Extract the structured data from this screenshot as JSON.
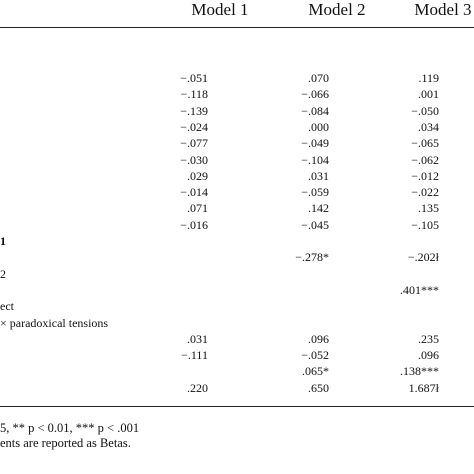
{
  "table": {
    "headers": [
      "Model 1",
      "Model 2",
      "Model 3"
    ],
    "rows": [
      {
        "label": "",
        "m1": "−.051",
        "m2": ".070",
        "m3": ".119"
      },
      {
        "label": "",
        "m1": "−.118",
        "m2": "−.066",
        "m3": ".001"
      },
      {
        "label": "",
        "m1": "−.139",
        "m2": "−.084",
        "m3": "−.050"
      },
      {
        "label": "",
        "m1": "−.024",
        "m2": ".000",
        "m3": ".034"
      },
      {
        "label": "",
        "m1": "−.077",
        "m2": "−.049",
        "m3": "−.065"
      },
      {
        "label": "",
        "m1": "−.030",
        "m2": "−.104",
        "m3": "−.062"
      },
      {
        "label": "",
        "m1": ".029",
        "m2": ".031",
        "m3": "−.012"
      },
      {
        "label": "",
        "m1": "−.014",
        "m2": "−.059",
        "m3": "−.022"
      },
      {
        "label": "",
        "m1": ".071",
        "m2": ".142",
        "m3": ".135"
      },
      {
        "label": "",
        "m1": "−.016",
        "m2": "−.045",
        "m3": "−.105"
      },
      {
        "label": "1",
        "m1": "",
        "m2": "",
        "m3": "",
        "bold": true
      },
      {
        "label": "",
        "m1": "",
        "m2": "−.278*",
        "m3": "−.202ł"
      },
      {
        "label": "2",
        "m1": "",
        "m2": "",
        "m3": ""
      },
      {
        "label": "",
        "m1": "",
        "m2": "",
        "m3": ".401***"
      },
      {
        "label": "ect",
        "m1": "",
        "m2": "",
        "m3": ""
      },
      {
        "label": "× paradoxical tensions",
        "m1": "",
        "m2": "",
        "m3": ""
      },
      {
        "label": "",
        "m1": ".031",
        "m2": ".096",
        "m3": ".235"
      },
      {
        "label": "",
        "m1": "−.111",
        "m2": "−.052",
        "m3": ".096"
      },
      {
        "label": "",
        "m1": "",
        "m2": ".065*",
        "m3": ".138***"
      },
      {
        "label": "",
        "m1": ".220",
        "m2": ".650",
        "m3": "1.687ł"
      }
    ]
  },
  "footnotes": [
    "5, ** p < 0.01, *** p < .001",
    "ents are reported as Betas."
  ]
}
